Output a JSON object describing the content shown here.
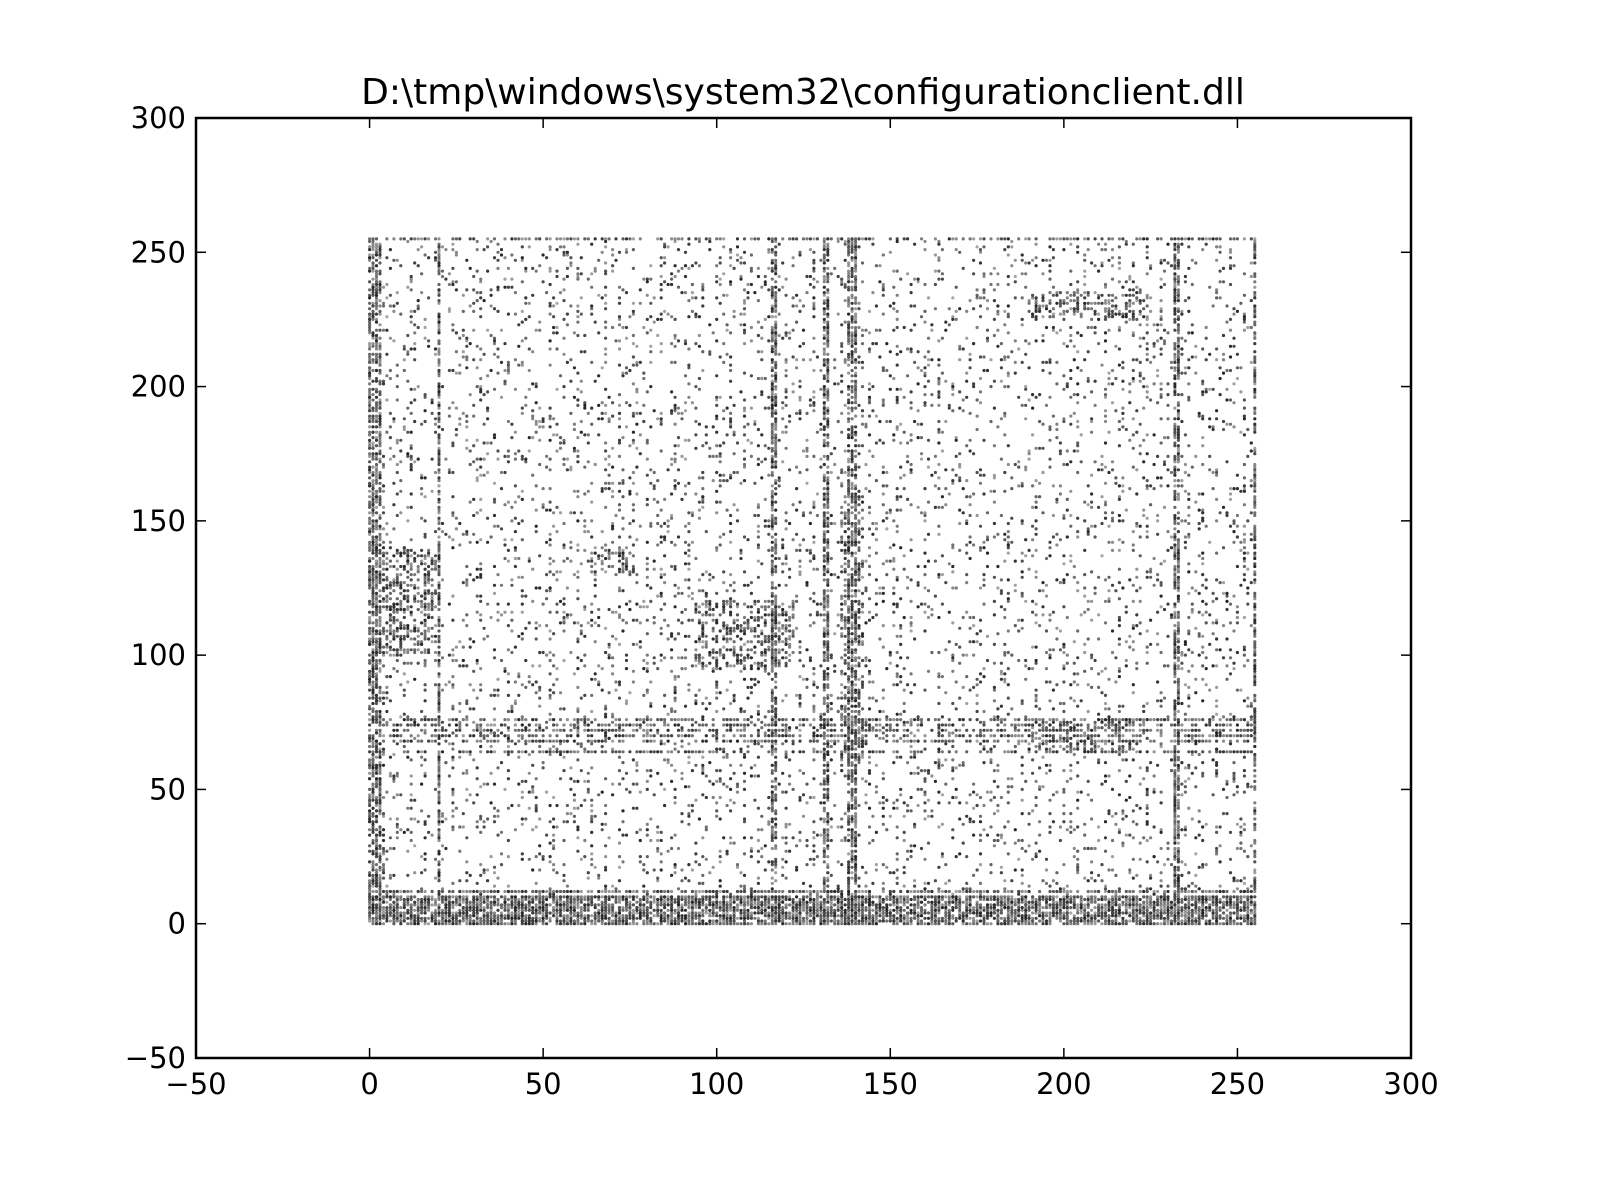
{
  "chart_data": {
    "type": "scatter",
    "title": "D:\\tmp\\windows\\system32\\configurationclient.dll",
    "xlabel": "",
    "ylabel": "",
    "xlim": [
      -50,
      300
    ],
    "ylim": [
      -50,
      300
    ],
    "xticks": [
      -50,
      0,
      50,
      100,
      150,
      200,
      250,
      300
    ],
    "yticks": [
      -50,
      0,
      50,
      100,
      150,
      200,
      250,
      300
    ],
    "xtick_labels": [
      "−50",
      "0",
      "50",
      "100",
      "150",
      "200",
      "250",
      "300"
    ],
    "ytick_labels": [
      "−50",
      "0",
      "50",
      "100",
      "150",
      "200",
      "250",
      "300"
    ],
    "grid": false,
    "legend": "none",
    "marker_color": "#000000",
    "data_domain": {
      "x": [
        0,
        255
      ],
      "y": [
        0,
        255
      ]
    },
    "dense_columns_x": [
      0,
      1,
      2,
      3,
      20,
      116,
      117,
      131,
      132,
      138,
      139,
      140,
      232,
      233,
      255
    ],
    "dense_rows_y": [
      0,
      1,
      2,
      3,
      4,
      5,
      6,
      7,
      8,
      9,
      10,
      12,
      64,
      68,
      70,
      72,
      74,
      76,
      255
    ],
    "dense_clusters": [
      {
        "x": [
          94,
          122
        ],
        "y": [
          95,
          120
        ]
      },
      {
        "x": [
          64,
          76
        ],
        "y": [
          130,
          140
        ]
      },
      {
        "x": [
          136,
          142
        ],
        "y": [
          60,
          160
        ]
      },
      {
        "x": [
          190,
          220
        ],
        "y": [
          64,
          76
        ]
      },
      {
        "x": [
          0,
          20
        ],
        "y": [
          100,
          140
        ]
      },
      {
        "x": [
          190,
          225
        ],
        "y": [
          225,
          235
        ]
      }
    ]
  }
}
